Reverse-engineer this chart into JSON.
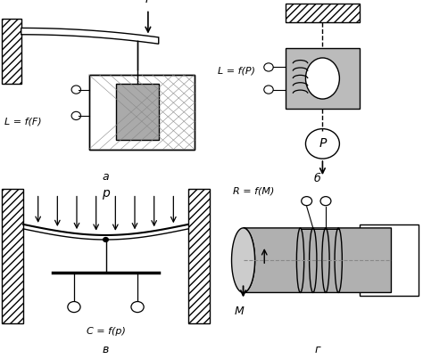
{
  "background": "#ffffff",
  "label_a": "а",
  "label_b": "б",
  "label_v": "в",
  "label_g": "г",
  "formula_a": "L = f(F)",
  "formula_b": "L = f(P)",
  "formula_v": "C = f(p)",
  "formula_g": "R = f(M)",
  "force_F": "F",
  "force_P": "P",
  "force_p": "p",
  "force_M": "M"
}
